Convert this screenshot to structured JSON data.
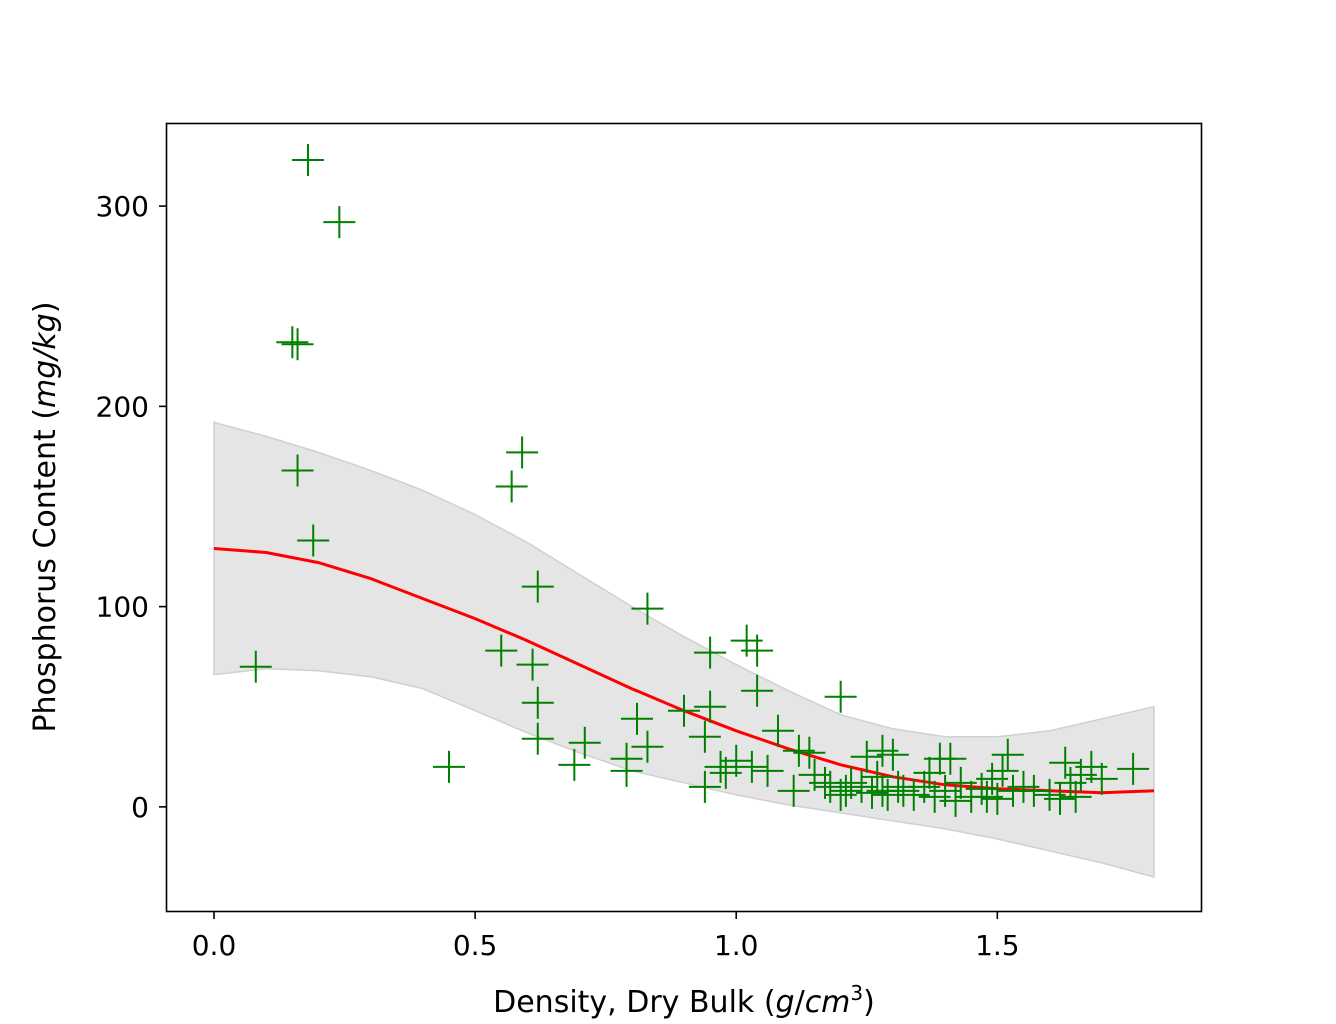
{
  "chart_data": {
    "type": "scatter",
    "title": "",
    "xlabel": {
      "prefix": "Density, Dry Bulk (",
      "unit_g": "g",
      "unit_sep": "/",
      "unit_cm": "cm",
      "unit_exp": "3",
      "suffix": ")"
    },
    "ylabel": {
      "prefix": "Phosphorus Content (",
      "unit": "mg/kg",
      "suffix": ")"
    },
    "xlim": [
      -0.09,
      1.89
    ],
    "ylim": [
      -52,
      341
    ],
    "x_ticks": [
      0.0,
      0.5,
      1.0,
      1.5
    ],
    "x_tick_labels": [
      "0.0",
      "0.5",
      "1.0",
      "1.5"
    ],
    "y_ticks": [
      0,
      100,
      200,
      300
    ],
    "y_tick_labels": [
      "0",
      "100",
      "200",
      "300"
    ],
    "grid": false,
    "colors": {
      "points": "#008000",
      "fit_line": "#ff0000",
      "band_fill": "#e5e5e5",
      "band_edge": "#d0d0d0",
      "axes": "#000000"
    },
    "series": [
      {
        "name": "observations",
        "kind": "scatter",
        "marker": "+",
        "x": [
          0.08,
          0.15,
          0.16,
          0.16,
          0.18,
          0.19,
          0.24,
          0.45,
          0.55,
          0.57,
          0.59,
          0.61,
          0.62,
          0.62,
          0.62,
          0.69,
          0.71,
          0.79,
          0.79,
          0.81,
          0.83,
          0.83,
          0.9,
          0.94,
          0.94,
          0.95,
          0.95,
          0.97,
          0.98,
          1.0,
          1.02,
          1.03,
          1.04,
          1.04,
          1.06,
          1.08,
          1.11,
          1.12,
          1.14,
          1.15,
          1.17,
          1.18,
          1.2,
          1.2,
          1.21,
          1.22,
          1.24,
          1.25,
          1.26,
          1.27,
          1.28,
          1.28,
          1.29,
          1.3,
          1.31,
          1.32,
          1.34,
          1.36,
          1.37,
          1.38,
          1.39,
          1.4,
          1.41,
          1.42,
          1.43,
          1.45,
          1.47,
          1.48,
          1.49,
          1.5,
          1.51,
          1.52,
          1.53,
          1.55,
          1.57,
          1.6,
          1.62,
          1.63,
          1.64,
          1.65,
          1.66,
          1.68,
          1.7,
          1.76
        ],
        "y": [
          70,
          232,
          231,
          168,
          323,
          133,
          292,
          20,
          78,
          160,
          177,
          71,
          110,
          52,
          34,
          21,
          32,
          18,
          24,
          44,
          30,
          99,
          48,
          10,
          35,
          50,
          77,
          20,
          17,
          23,
          83,
          20,
          78,
          58,
          18,
          38,
          8,
          28,
          27,
          16,
          12,
          10,
          6,
          55,
          8,
          12,
          10,
          25,
          7,
          15,
          8,
          28,
          6,
          26,
          10,
          8,
          6,
          10,
          17,
          5,
          24,
          8,
          24,
          3,
          12,
          5,
          9,
          5,
          14,
          4,
          18,
          26,
          8,
          10,
          8,
          6,
          4,
          22,
          12,
          5,
          16,
          20,
          14,
          19
        ]
      },
      {
        "name": "fit",
        "kind": "line",
        "x": [
          0.0,
          0.1,
          0.2,
          0.3,
          0.4,
          0.5,
          0.6,
          0.7,
          0.8,
          0.9,
          1.0,
          1.1,
          1.2,
          1.3,
          1.4,
          1.5,
          1.6,
          1.7,
          1.8
        ],
        "y": [
          129,
          127,
          122,
          114,
          104,
          94,
          83,
          71,
          59,
          48,
          38,
          29,
          21,
          15,
          11,
          9,
          8,
          7,
          8
        ]
      },
      {
        "name": "confidence band",
        "kind": "band",
        "x": [
          0.0,
          0.1,
          0.2,
          0.3,
          0.4,
          0.5,
          0.6,
          0.7,
          0.8,
          0.9,
          1.0,
          1.1,
          1.2,
          1.3,
          1.4,
          1.5,
          1.6,
          1.7,
          1.8
        ],
        "upper": [
          192,
          185,
          177,
          168,
          158,
          146,
          132,
          116,
          100,
          85,
          71,
          58,
          46,
          39,
          35,
          35,
          38,
          44,
          50
        ],
        "lower": [
          66,
          69,
          68,
          65,
          59,
          48,
          37,
          27,
          18,
          12,
          6,
          1,
          -3,
          -7,
          -11,
          -16,
          -22,
          -28,
          -35
        ]
      }
    ]
  }
}
